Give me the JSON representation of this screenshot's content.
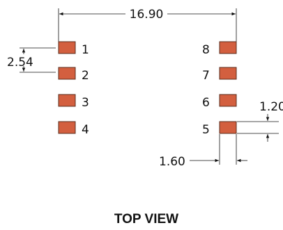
{
  "diagram": {
    "title": "TOP VIEW",
    "pad_color": "#d35f3f",
    "pad_border": "#5a2c1c",
    "pads_left": [
      "1",
      "2",
      "3",
      "4"
    ],
    "pads_right": [
      "8",
      "7",
      "6",
      "5"
    ],
    "dimensions": {
      "overall_width": "16.90",
      "pitch": "2.54",
      "pad_width": "1.60",
      "pad_height": "1.20"
    }
  }
}
